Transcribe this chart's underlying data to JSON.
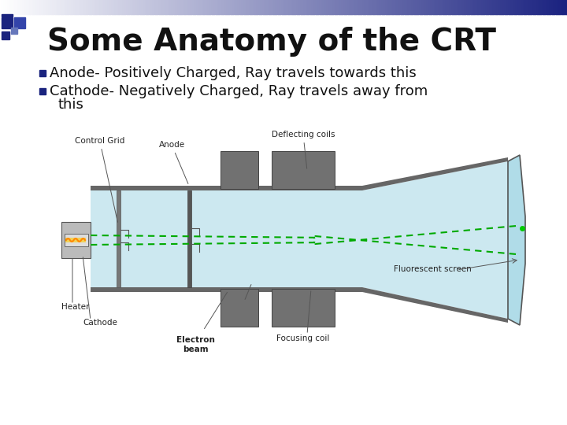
{
  "title": "Some Anatomy of the CRT",
  "title_fontsize": 28,
  "bg_color": "#ffffff",
  "bullet_color": "#1a237e",
  "bullet1": "Anode- Positively Charged, Ray travels towards this",
  "bullet2_line1": "Cathode- Negatively Charged, Ray travels away from",
  "bullet2_line2": "this",
  "bullet_fontsize": 13,
  "label_fontsize": 7.5,
  "tube_blue": "#cce8f0",
  "screen_blue": "#b0dce8",
  "dark_gray": "#666666",
  "med_gray": "#888888",
  "gun_gray": "#aaaaaa",
  "beam_green": "#00aa00",
  "heater_yellow": "#ffcc00",
  "heater_orange": "#ff8800"
}
